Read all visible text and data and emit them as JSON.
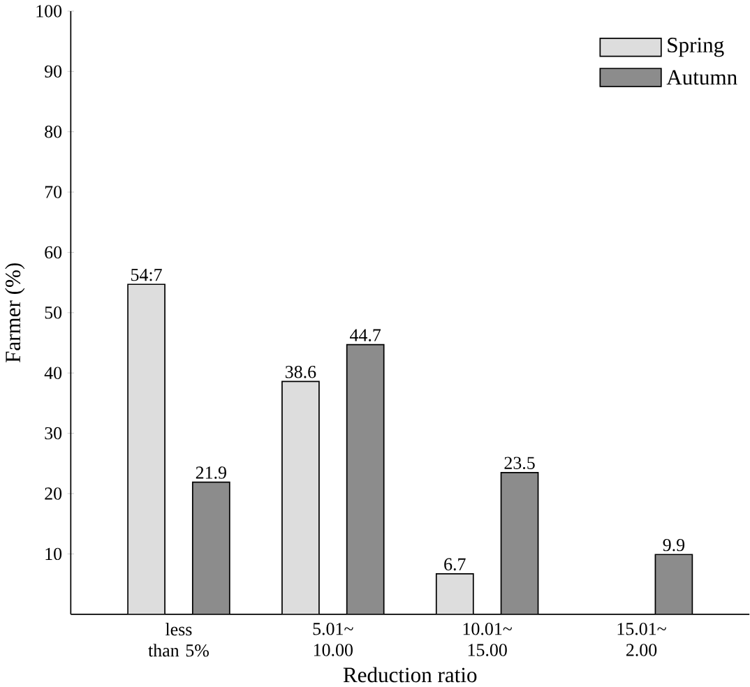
{
  "chart_data": {
    "type": "bar",
    "xlabel": "Reduction ratio",
    "ylabel": "Farmer (%)",
    "categories": [
      "less than 5%",
      "5.01~ 10.00",
      "10.01~ 15.00",
      "15.01~ 2.00"
    ],
    "series": [
      {
        "name": "Spring",
        "color": "#dddddd",
        "values": [
          54.7,
          38.6,
          6.7,
          null
        ],
        "value_labels": [
          "54:7",
          "38.6",
          "6.7",
          null
        ]
      },
      {
        "name": "Autumn",
        "color": "#8c8c8c",
        "values": [
          21.9,
          44.7,
          23.5,
          9.9
        ],
        "value_labels": [
          "21.9",
          "44.7",
          "23.5",
          "9.9"
        ]
      }
    ],
    "ylim": [
      0,
      100
    ],
    "yticks": [
      10,
      20,
      30,
      40,
      50,
      60,
      70,
      80,
      90,
      100
    ],
    "grid": false,
    "legend": "top right"
  }
}
